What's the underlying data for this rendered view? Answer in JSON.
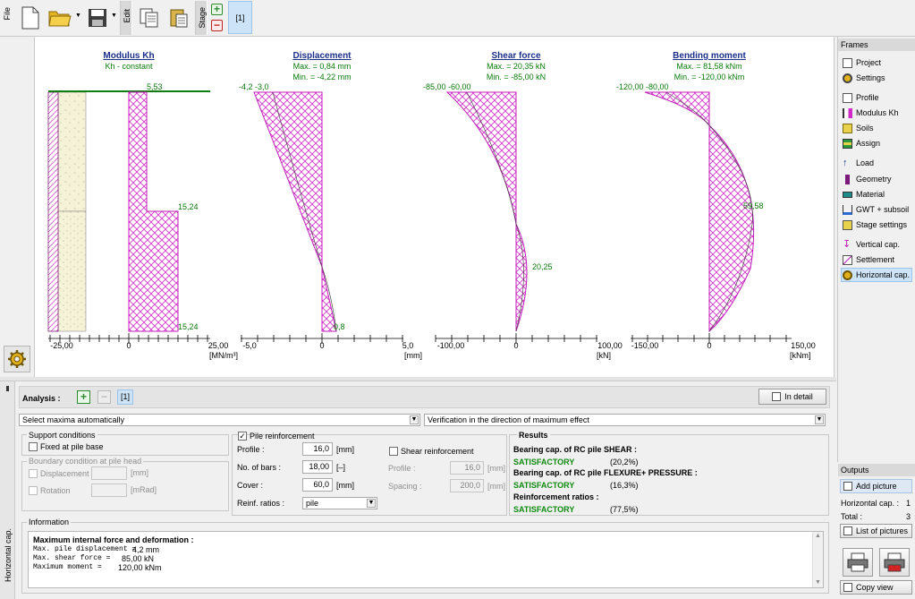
{
  "toolbar": {
    "file_label": "File",
    "edit_label": "Edit",
    "stage_label": "Stage",
    "stage_current": "[1]"
  },
  "charts": {
    "modulus": {
      "title": "Modulus Kh",
      "subtitle": "Kh - constant",
      "ticks": [
        "-25,00",
        "0",
        "25,00"
      ],
      "unit": "[MN/m³]",
      "val_top": "5,53",
      "val_mid": "15,24",
      "val_bot": "15,24"
    },
    "displacement": {
      "title": "Displacement",
      "max": "Max. = 0,84 mm",
      "min": "Min. = -4,22 mm",
      "ticks": [
        "-5,0",
        "0",
        "5,0"
      ],
      "unit": "[mm]",
      "val_top": "-4,2 -3,0",
      "val_bot": "0,8"
    },
    "shear": {
      "title": "Shear force",
      "max": "Max. = 20,35 kN",
      "min": "Min. = -85,00 kN",
      "ticks": [
        "-100,00",
        "0",
        "100,00"
      ],
      "unit": "[kN]",
      "val_top": "-85,00 -60,00",
      "val_mid": "20,25"
    },
    "moment": {
      "title": "Bending moment",
      "max": "Max. = 81,58 kNm",
      "min": "Min. = -120,00 kNm",
      "ticks": [
        "-150,00",
        "0",
        "150,00"
      ],
      "unit": "[kNm]",
      "val_top": "-120,00 -80,00",
      "val_mid": "59,58"
    }
  },
  "frames": {
    "title": "Frames",
    "items": [
      "Project",
      "Settings",
      "Profile",
      "Modulus Kh",
      "Soils",
      "Assign",
      "Load",
      "Geometry",
      "Material",
      "GWT + subsoil",
      "Stage settings",
      "Vertical cap.",
      "Settlement",
      "Horizontal cap."
    ]
  },
  "outputs": {
    "title": "Outputs",
    "add_picture": "Add picture",
    "horizontal_label": "Horizontal cap. :",
    "horizontal_value": "1",
    "total_label": "Total :",
    "total_value": "3",
    "list_pictures": "List of pictures",
    "copy_view": "Copy view"
  },
  "analysis": {
    "label": "Analysis :",
    "current": "[1]",
    "in_detail": "In detail",
    "side_tab": "Horizontal cap.",
    "select_maxima": "Select maxima automatically",
    "verification": "Verification in the direction of maximum effect"
  },
  "support": {
    "title": "Support conditions",
    "fixed": "Fixed at pile base",
    "boundary_title": "Boundary condition at pile head",
    "displacement": "Displacement",
    "displacement_unit": "[mm]",
    "rotation": "Rotation",
    "rotation_unit": "[mRad]"
  },
  "reinforcement": {
    "pile_reinf": "Pile reinforcement",
    "profile_label": "Profile :",
    "profile_value": "16,0",
    "profile_unit": "[mm]",
    "bars_label": "No. of bars :",
    "bars_value": "18,00",
    "bars_unit": "[–]",
    "cover_label": "Cover :",
    "cover_value": "60,0",
    "cover_unit": "[mm]",
    "ratios_label": "Reinf. ratios :",
    "ratios_value": "pile",
    "shear_reinf": "Shear reinforcement",
    "s_profile_label": "Profile :",
    "s_profile_value": "16,0",
    "s_profile_unit": "[mm]",
    "spacing_label": "Spacing :",
    "spacing_value": "200,0",
    "spacing_unit": "[mm]"
  },
  "results": {
    "title": "Results",
    "r1_title": "Bearing cap. of RC pile SHEAR :",
    "r1_status": "SATISFACTORY",
    "r1_value": "(20,2%)",
    "r2_title": "Bearing cap. of RC pile FLEXURE+ PRESSURE :",
    "r2_status": "SATISFACTORY",
    "r2_value": "(16,3%)",
    "r3_title": "Reinforcement ratios :",
    "r3_status": "SATISFACTORY",
    "r3_value": "(77,5%)"
  },
  "information": {
    "title": "Information",
    "heading": "Maximum internal force and deformation :",
    "l1_label": "Max. pile displacement  =",
    "l1_value": "4,2 mm",
    "l2_label": "Max. shear force        =",
    "l2_value": "85,00  kN",
    "l3_label": "Maximum moment          =",
    "l3_value": "120,00  kNm"
  }
}
